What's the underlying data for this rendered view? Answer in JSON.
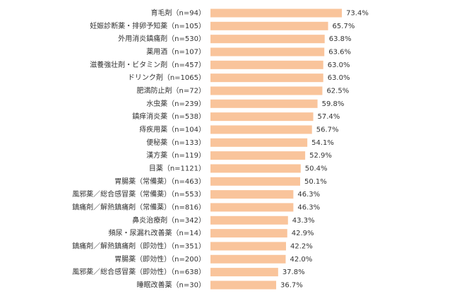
{
  "chart_data": {
    "type": "barh",
    "color": "#f9c49b",
    "categories": [
      "育毛剤（n=94）",
      "妊娠診断薬・排卵予知薬（n=105）",
      "外用消炎鎮痛剤（n=530）",
      "薬用酒（n=107）",
      "滋養強壮剤・ビタミン剤（n=457）",
      "ドリンク剤（n=1065）",
      "肥満防止剤（n=72）",
      "水虫薬（n=239）",
      "鎮痒消炎薬（n=538）",
      "痔疾用薬（n=104）",
      "便秘薬（n=133）",
      "漢方薬（n=119）",
      "目薬（n=1121）",
      "胃腸薬（常備薬）（n=463）",
      "風邪薬／総合感冒薬（常備薬）（n=553）",
      "鎮痛剤／解熱鎮痛剤（常備薬）（n=816）",
      "鼻炎治療剤（n=342）",
      "頻尿・尿漏れ改善薬（n=14）",
      "鎮痛剤／解熱鎮痛剤（即効性）（n=351）",
      "胃腸薬（即効性）（n=200）",
      "風邪薬／総合感冒薬（即効性）（n=638）",
      "睡眠改善薬（n=30）"
    ],
    "values": [
      73.4,
      65.7,
      63.8,
      63.6,
      63.0,
      63.0,
      62.5,
      59.8,
      57.4,
      56.7,
      54.1,
      52.9,
      50.4,
      50.1,
      46.3,
      46.3,
      43.3,
      42.9,
      42.2,
      42.0,
      37.8,
      36.7
    ],
    "value_labels": [
      "73.4%",
      "65.7%",
      "63.8%",
      "63.6%",
      "63.0%",
      "63.0%",
      "62.5%",
      "59.8%",
      "57.4%",
      "56.7%",
      "54.1%",
      "52.9%",
      "50.4%",
      "50.1%",
      "46.3%",
      "46.3%",
      "43.3%",
      "42.9%",
      "42.2%",
      "42.0%",
      "37.8%",
      "36.7%"
    ]
  }
}
